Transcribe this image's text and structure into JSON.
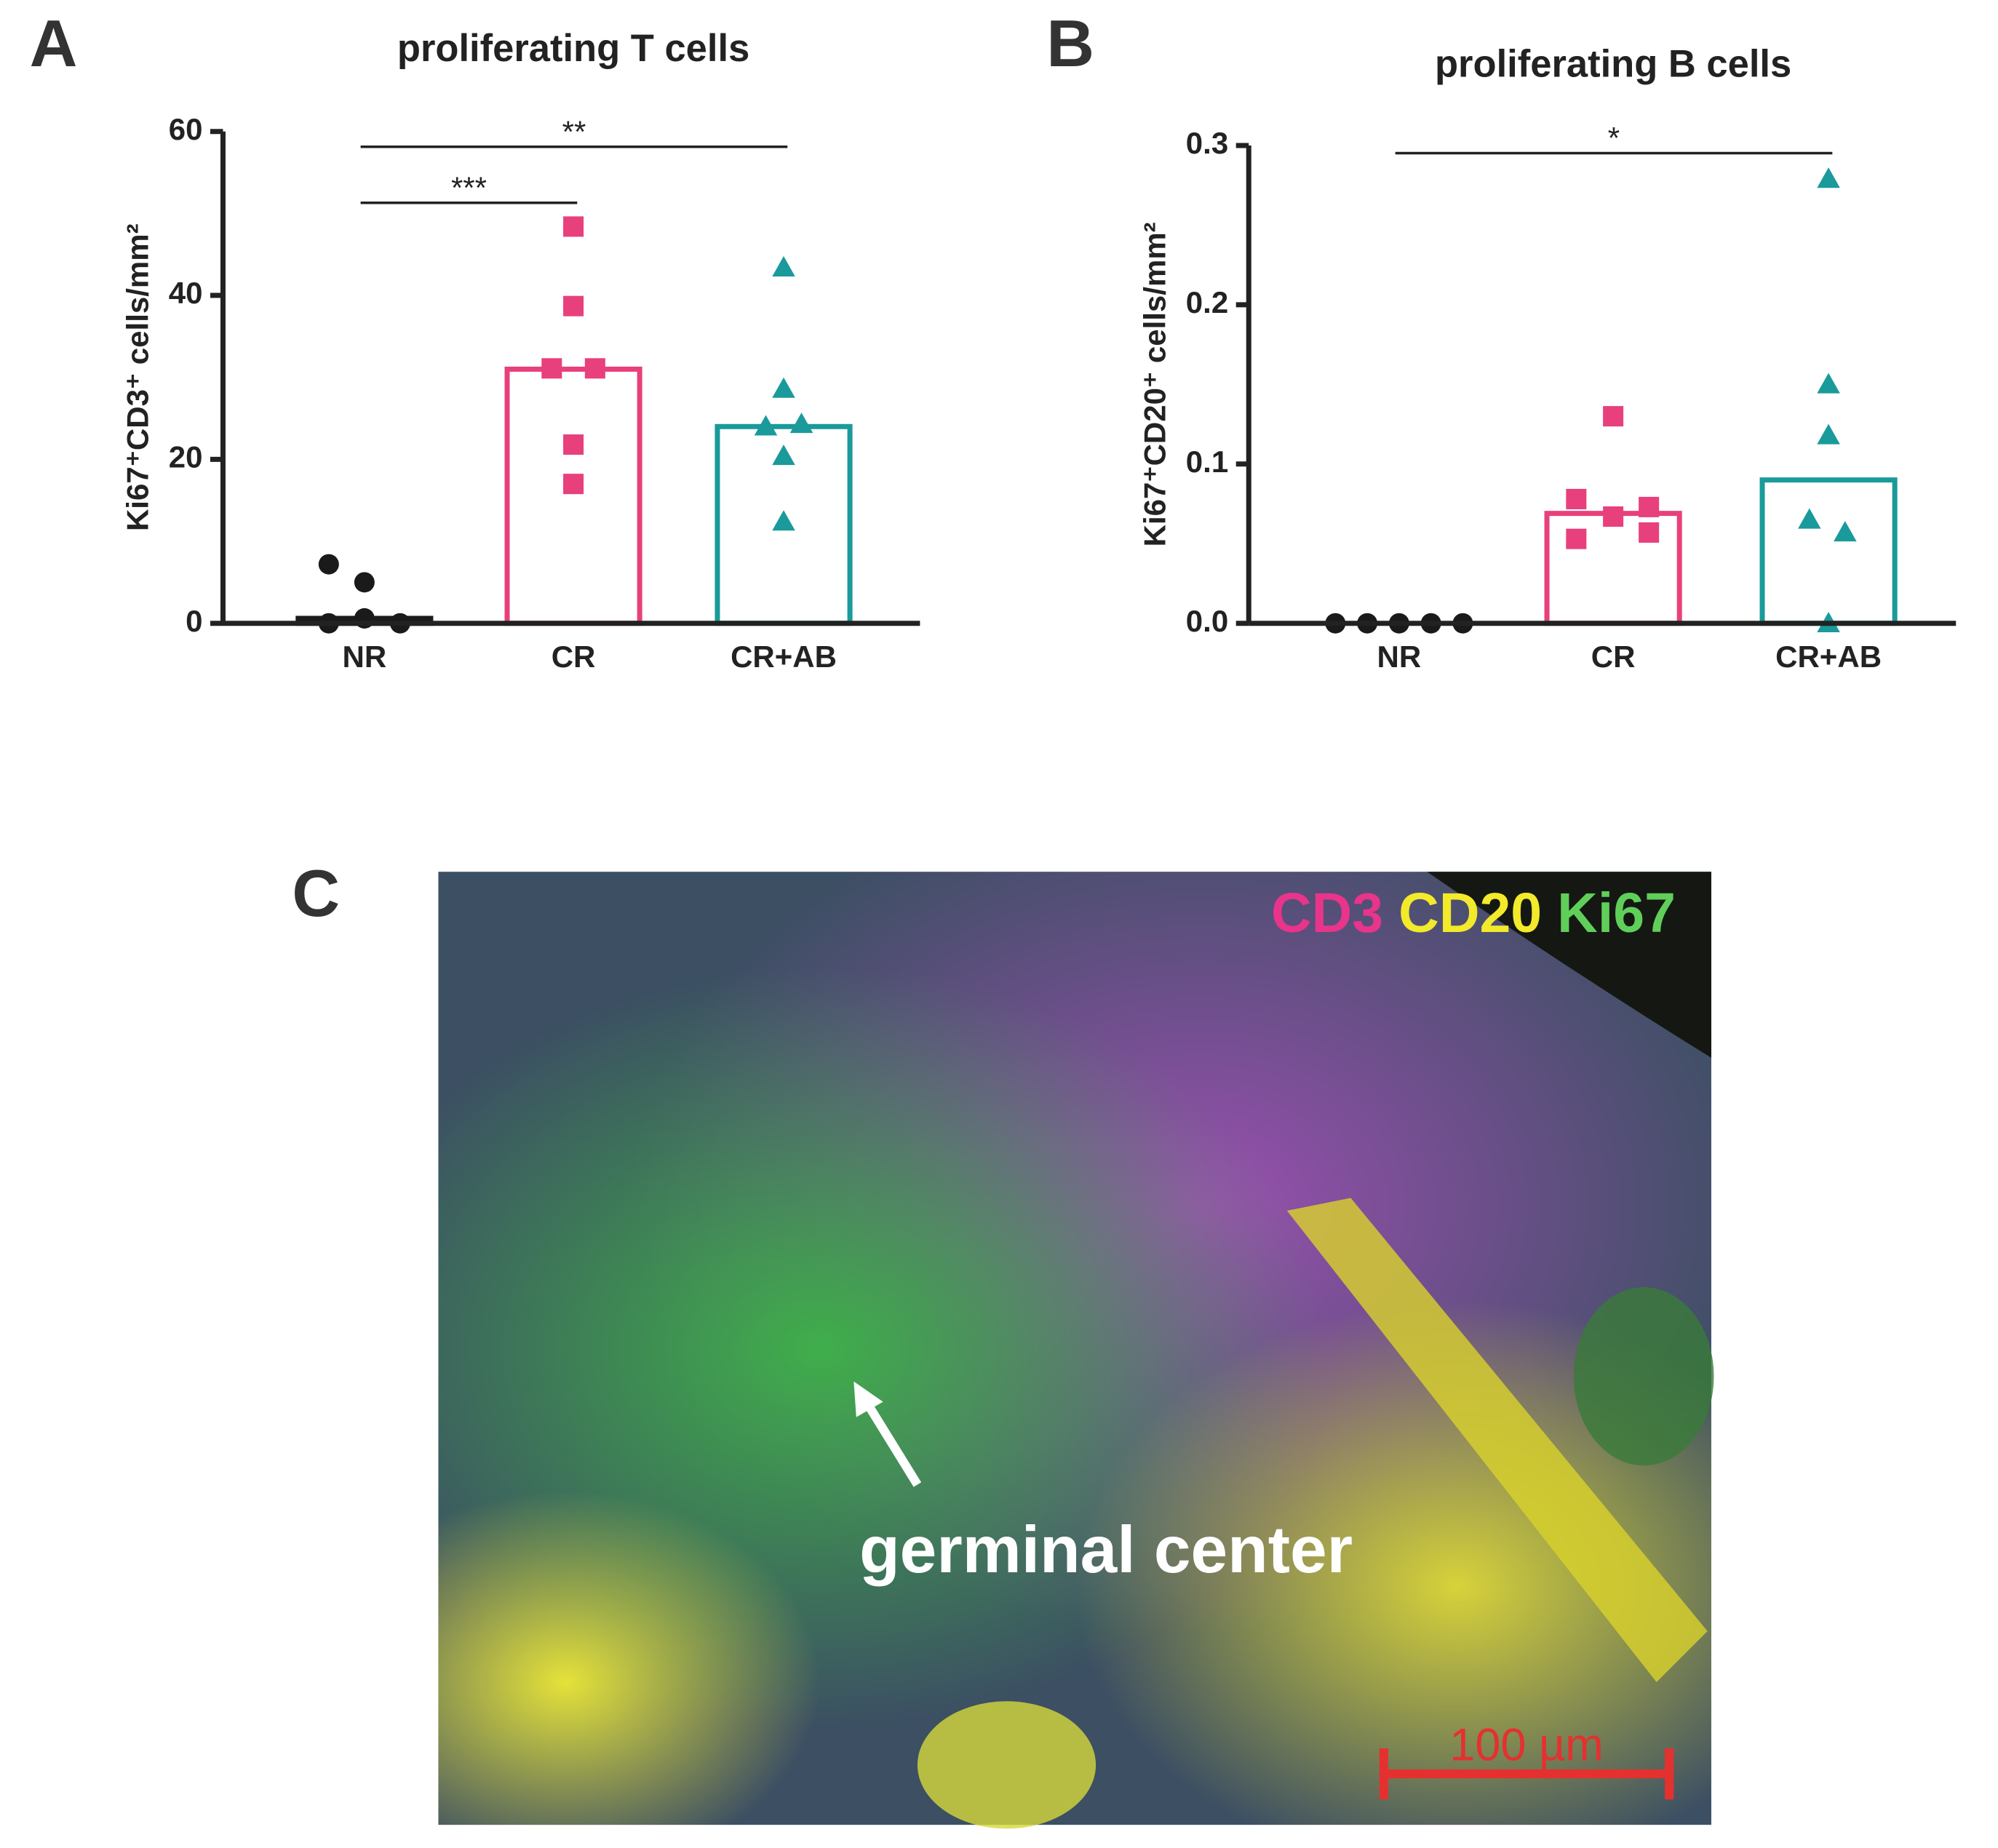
{
  "chart_data": [
    {
      "type": "bar",
      "panel": "A",
      "title": "proliferating T cells",
      "ylabel": "Ki67⁺CD3⁺ cells/mm²",
      "categories": [
        "NR",
        "CR",
        "CR+AB"
      ],
      "values": [
        0.6,
        31,
        24
      ],
      "points": [
        [
          7.2,
          5,
          0,
          0.6,
          0
        ],
        [
          48.4,
          38.7,
          31.1,
          31.1,
          21.8,
          17
        ],
        [
          43.4,
          28.6,
          24,
          24.3,
          20.4,
          12.4
        ]
      ],
      "colors": [
        "#1a1a1a",
        "#e8407c",
        "#1a9a9a"
      ],
      "markers": [
        "circle",
        "square",
        "triangle"
      ],
      "ylim": [
        0,
        60
      ],
      "yticks": [
        0,
        20,
        40,
        60
      ],
      "annotations": [
        {
          "text": "***",
          "from": 0,
          "to": 1
        },
        {
          "text": "**",
          "from": 0,
          "to": 2
        }
      ]
    },
    {
      "type": "bar",
      "panel": "B",
      "title": "proliferating B cells",
      "ylabel": "Ki67⁺CD20⁺ cells/mm²",
      "categories": [
        "NR",
        "CR",
        "CR+AB"
      ],
      "values": [
        0,
        0.069,
        0.09
      ],
      "points": [
        [
          0,
          0,
          0,
          0,
          0
        ],
        [
          0.13,
          0.078,
          0.067,
          0.073,
          0.053,
          0.057
        ],
        [
          0.279,
          0.15,
          0.118,
          0.065,
          0.057,
          0
        ]
      ],
      "colors": [
        "#1a1a1a",
        "#e8407c",
        "#1a9a9a"
      ],
      "markers": [
        "circle",
        "square",
        "triangle"
      ],
      "ylim": [
        0,
        0.3
      ],
      "yticks": [
        {
          "value": 0,
          "label": "0.0"
        },
        0.1,
        0.2,
        0.3
      ],
      "annotations": [
        {
          "text": "*",
          "from": 0,
          "to": 2
        }
      ]
    }
  ],
  "image_panel": {
    "panel": "C",
    "stains": [
      "CD3",
      "CD20",
      "Ki67"
    ],
    "stain_colors": [
      "#e8348a",
      "#f2ea2a",
      "#5fcf5a"
    ],
    "annotation": "germinal center",
    "scale_bar": "100 µm"
  }
}
